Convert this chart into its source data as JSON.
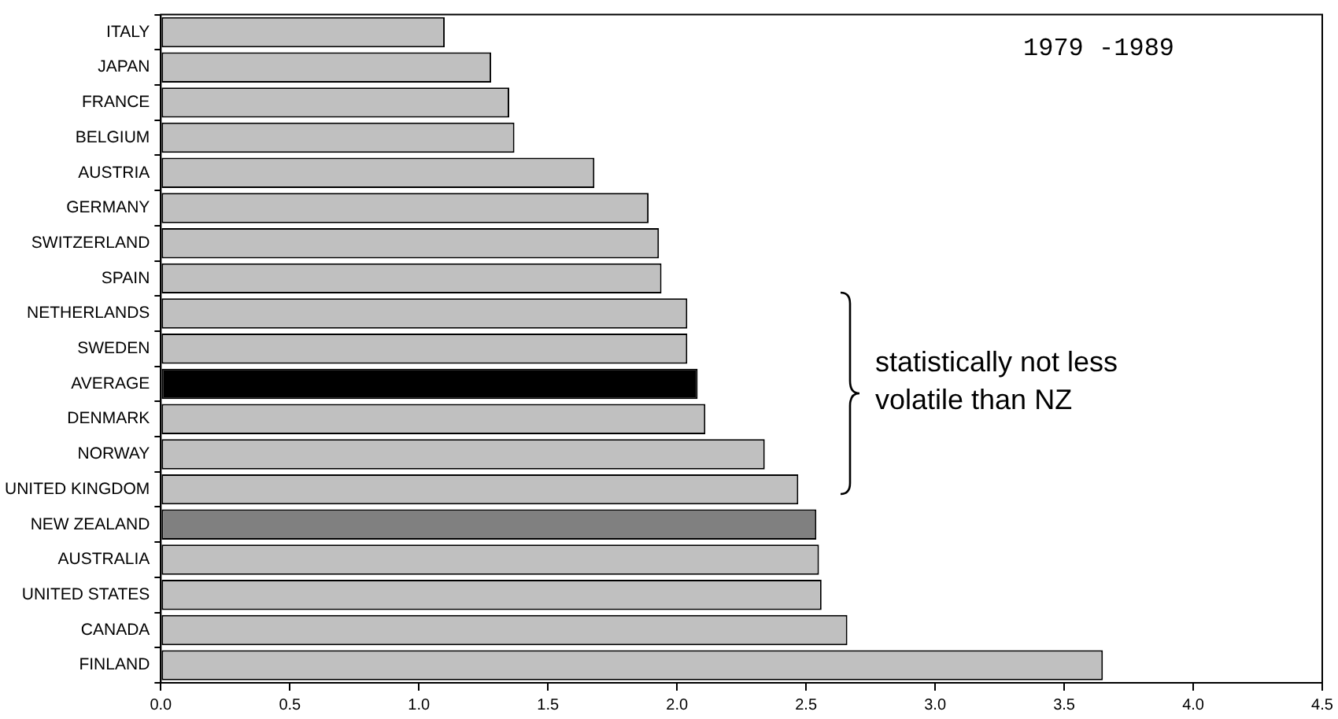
{
  "chart_data": {
    "type": "bar",
    "orientation": "horizontal",
    "categories": [
      "ITALY",
      "JAPAN",
      "FRANCE",
      "BELGIUM",
      "AUSTRIA",
      "GERMANY",
      "SWITZERLAND",
      "SPAIN",
      "NETHERLANDS",
      "SWEDEN",
      "AVERAGE",
      "DENMARK",
      "NORWAY",
      "UNITED KINGDOM",
      "NEW ZEALAND",
      "AUSTRALIA",
      "UNITED STATES",
      "CANADA",
      "FINLAND"
    ],
    "values": [
      1.1,
      1.28,
      1.35,
      1.37,
      1.68,
      1.89,
      1.93,
      1.94,
      2.04,
      2.04,
      2.08,
      2.11,
      2.34,
      2.47,
      2.54,
      2.55,
      2.56,
      2.66,
      3.65
    ],
    "colors": [
      "#c0c0c0",
      "#c0c0c0",
      "#c0c0c0",
      "#c0c0c0",
      "#c0c0c0",
      "#c0c0c0",
      "#c0c0c0",
      "#c0c0c0",
      "#c0c0c0",
      "#c0c0c0",
      "#000000",
      "#c0c0c0",
      "#c0c0c0",
      "#c0c0c0",
      "#808080",
      "#c0c0c0",
      "#c0c0c0",
      "#c0c0c0",
      "#c0c0c0"
    ],
    "xlim": [
      0,
      4.5
    ],
    "xticks": [
      {
        "value": 0,
        "label": "0.0"
      },
      {
        "value": 0.5,
        "label": "0.5"
      },
      {
        "value": 1,
        "label": "1.0"
      },
      {
        "value": 1.5,
        "label": "1.5"
      },
      {
        "value": 2,
        "label": "2.0"
      },
      {
        "value": 2.5,
        "label": "2.5"
      },
      {
        "value": 3,
        "label": "3.0"
      },
      {
        "value": 3.5,
        "label": "3.5"
      },
      {
        "value": 4,
        "label": "4.0"
      },
      {
        "value": 4.5,
        "label": "4.5"
      }
    ],
    "annotations": [
      "1979 -1989",
      "statistically not less volatile than NZ"
    ],
    "legend": false
  }
}
